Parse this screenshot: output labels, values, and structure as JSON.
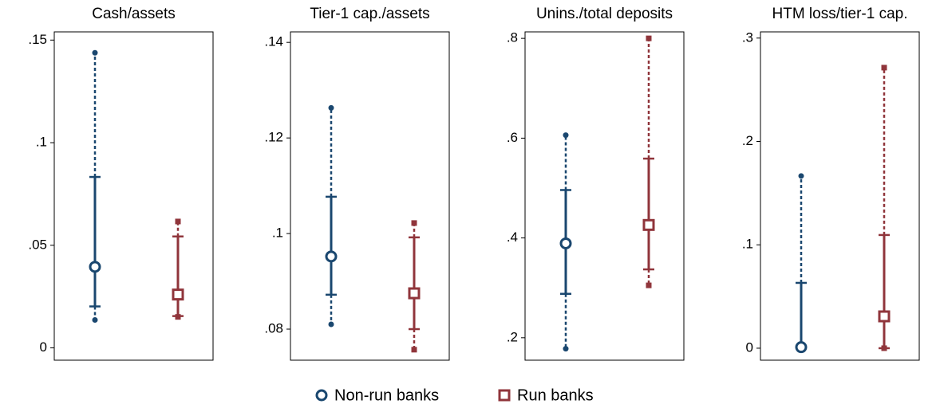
{
  "chart_data": [
    {
      "type": "range",
      "title": "Cash/assets",
      "ylim": [
        -0.006,
        0.154
      ],
      "yticks": [
        0,
        {
          "value": 0.05,
          "label": ".05"
        },
        {
          "value": 0.1,
          "label": ".1"
        },
        {
          "value": 0.15,
          "label": ".15"
        }
      ],
      "series": [
        {
          "min": 0.0136,
          "q1": 0.0202,
          "median": 0.0395,
          "q3": 0.0833,
          "max": 0.1438
        },
        {
          "min": 0.0151,
          "q1": 0.0155,
          "median": 0.026,
          "q3": 0.0543,
          "max": 0.0616
        }
      ]
    },
    {
      "type": "range",
      "title": "Tier-1 cap./assets",
      "ylim": [
        0.0735,
        0.1422
      ],
      "yticks": [
        {
          "value": 0.08,
          "label": ".08"
        },
        {
          "value": 0.1,
          "label": ".1"
        },
        {
          "value": 0.12,
          "label": ".12"
        },
        {
          "value": 0.14,
          "label": ".14"
        }
      ],
      "series": [
        {
          "min": 0.081,
          "q1": 0.0872,
          "median": 0.0952,
          "q3": 0.1077,
          "max": 0.1263
        },
        {
          "min": 0.0757,
          "q1": 0.08,
          "median": 0.0875,
          "q3": 0.0992,
          "max": 0.1022
        }
      ]
    },
    {
      "type": "range",
      "title": "Unins./total deposits",
      "ylim": [
        0.155,
        0.813
      ],
      "yticks": [
        {
          "value": 0.2,
          "label": ".2"
        },
        {
          "value": 0.4,
          "label": ".4"
        },
        {
          "value": 0.6,
          "label": ".6"
        },
        {
          "value": 0.8,
          "label": ".8"
        }
      ],
      "series": [
        {
          "min": 0.178,
          "q1": 0.288,
          "median": 0.389,
          "q3": 0.496,
          "max": 0.606
        },
        {
          "min": 0.305,
          "q1": 0.337,
          "median": 0.426,
          "q3": 0.559,
          "max": 0.8
        }
      ]
    },
    {
      "type": "range",
      "title": "HTM loss/tier-1 cap.",
      "ylim": [
        -0.0116,
        0.306
      ],
      "yticks": [
        0,
        {
          "value": 0.1,
          "label": ".1"
        },
        {
          "value": 0.2,
          "label": ".2"
        },
        {
          "value": 0.3,
          "label": ".3"
        }
      ],
      "series": [
        {
          "min": 0,
          "q1": 0,
          "median": 0.001,
          "q3": 0.0632,
          "max": 0.1666
        },
        {
          "min": 0,
          "q1": 0,
          "median": 0.0308,
          "q3": 0.1095,
          "max": 0.2714
        }
      ]
    }
  ],
  "legend": [
    {
      "name": "Non-run banks",
      "color": "#1a476f",
      "marker": "circle"
    },
    {
      "name": "Run banks",
      "color": "#90353b",
      "marker": "square"
    }
  ]
}
